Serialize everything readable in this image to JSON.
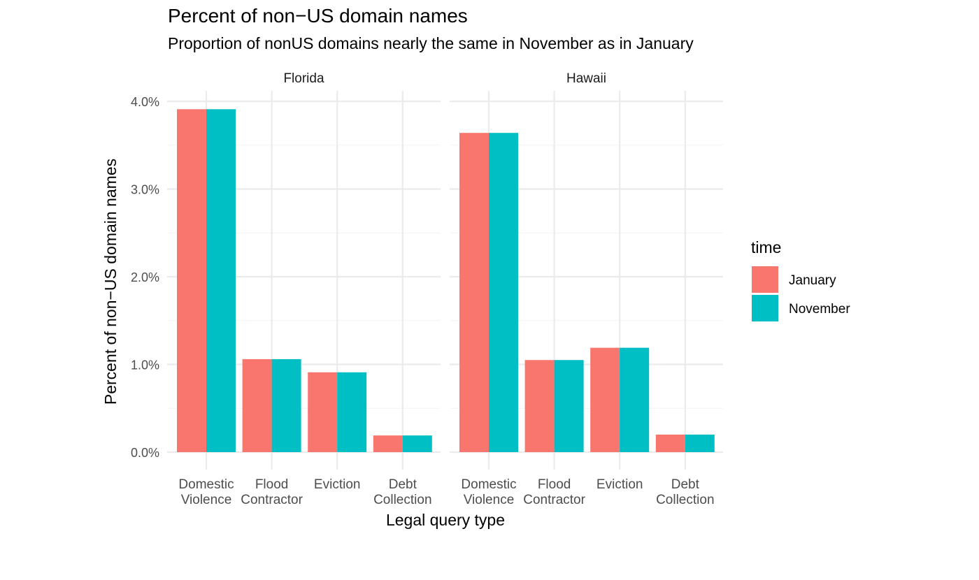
{
  "chart_data": {
    "type": "bar",
    "title": "Percent of non−US domain names",
    "subtitle": "Proportion of nonUS domains nearly the same in November as in January",
    "xlabel": "Legal query type",
    "ylabel": "Percent of non−US domain names",
    "ylim": [
      0,
      0.04
    ],
    "yticks": [
      0,
      0.01,
      0.02,
      0.03,
      0.04
    ],
    "ytick_labels": [
      "0.0%",
      "1.0%",
      "2.0%",
      "3.0%",
      "4.0%"
    ],
    "grid": true,
    "legend": {
      "title": "time",
      "position": "right"
    },
    "categories": [
      [
        "Domestic",
        "Violence"
      ],
      [
        "Flood",
        "Contractor"
      ],
      [
        "Eviction"
      ],
      [
        "Debt",
        "Collection"
      ]
    ],
    "colors": {
      "January": "#F8766D",
      "November": "#00BFC4"
    },
    "panels": [
      {
        "name": "Florida",
        "series": [
          {
            "name": "January",
            "values": [
              0.0391,
              0.0106,
              0.0091,
              0.0019
            ]
          },
          {
            "name": "November",
            "values": [
              0.0391,
              0.0106,
              0.0091,
              0.0019
            ]
          }
        ]
      },
      {
        "name": "Hawaii",
        "series": [
          {
            "name": "January",
            "values": [
              0.0364,
              0.0105,
              0.0119,
              0.002
            ]
          },
          {
            "name": "November",
            "values": [
              0.0364,
              0.0105,
              0.0119,
              0.002
            ]
          }
        ]
      }
    ]
  }
}
